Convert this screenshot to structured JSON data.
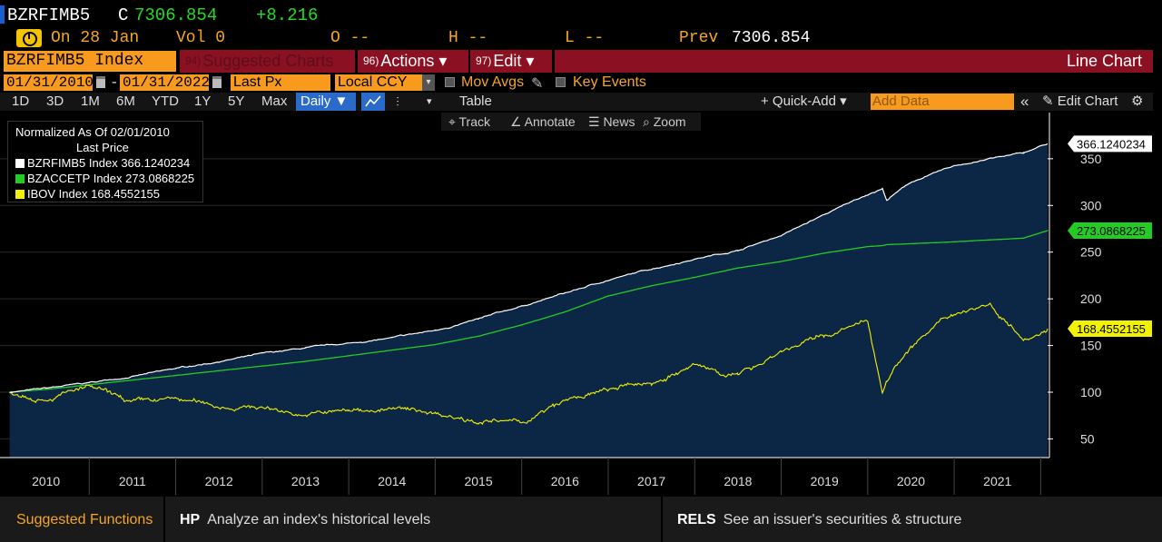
{
  "quote": {
    "ticker": "BZRFIMB5",
    "close_flag": "C",
    "last": "7306.854",
    "change": "+8.216",
    "date_label": "On 28 Jan",
    "vol_label": "Vol 0",
    "open_label": "O --",
    "high_label": "H --",
    "low_label": "L --",
    "prev_label": "Prev",
    "prev_value": "7306.854"
  },
  "function_bar": {
    "security": "BZRFIMB5 Index",
    "suggested_num": "94)",
    "suggested_label": "Suggested Charts",
    "actions_num": "96)",
    "actions_label": "Actions ▾",
    "edit_num": "97)",
    "edit_label": "Edit ▾",
    "chart_type": "Line Chart"
  },
  "range_bar": {
    "start_date": "01/31/2010",
    "dash": "-",
    "end_date": "01/31/2022",
    "field": "Last Px",
    "currency": "Local CCY",
    "mov_avgs": "Mov Avgs",
    "key_events": "Key Events"
  },
  "toolbar": {
    "periods": [
      "1D",
      "3D",
      "1M",
      "6M",
      "YTD",
      "1Y",
      "5Y",
      "Max"
    ],
    "frequency": "Daily ▼",
    "table": "Table",
    "quick_add": "+ Quick-Add ▾",
    "add_data_placeholder": "Add Data",
    "collapse": "«",
    "edit_chart": "✎ Edit Chart"
  },
  "tools": {
    "track": "⌖ Track",
    "annotate": "∠ Annotate",
    "news": "☰ News",
    "zoom": "⌕ Zoom"
  },
  "legend": {
    "title": "Normalized As Of 02/01/2010",
    "subtitle": "Last Price",
    "entries": [
      {
        "name": "BZRFIMB5 Index",
        "value": "366.1240234",
        "color": "#ffffff"
      },
      {
        "name": "BZACCETP Index",
        "value": "273.0868225",
        "color": "#22cc22"
      },
      {
        "name": "IBOV Index",
        "value": "168.4552155",
        "color": "#f2f200"
      }
    ]
  },
  "colors": {
    "area_fill": "#0c2646",
    "bzrfimb5": "#ffffff",
    "bzaccetp": "#22cc22",
    "ibov": "#f2f200",
    "accent_orange": "#f79a1e",
    "function_red": "#8a1022"
  },
  "chart_data": {
    "type": "line",
    "title": "",
    "xlabel": "",
    "ylabel": "",
    "x": [
      2010.08,
      2010.5,
      2011,
      2011.5,
      2012,
      2012.5,
      2013,
      2013.5,
      2014,
      2014.5,
      2015,
      2015.5,
      2016,
      2016.5,
      2017,
      2017.5,
      2018,
      2018.5,
      2019,
      2019.5,
      2020,
      2020.17,
      2020.22,
      2020.5,
      2021,
      2021.4,
      2021.8,
      2022.08
    ],
    "x_tick_labels": [
      "2010",
      "2011",
      "2012",
      "2013",
      "2014",
      "2015",
      "2016",
      "2017",
      "2018",
      "2019",
      "2020",
      "2021"
    ],
    "ylim": [
      30,
      380
    ],
    "y_ticks": [
      50,
      100,
      150,
      200,
      250,
      300,
      350
    ],
    "grid": true,
    "y_axis_side": "right",
    "series": [
      {
        "name": "BZRFIMB5 Index",
        "last_value": "366.1240234",
        "style": "line with filled area",
        "values": [
          100,
          104,
          110,
          117,
          125,
          133,
          141,
          147,
          152,
          158,
          166,
          178,
          192,
          206,
          220,
          232,
          243,
          252,
          268,
          290,
          312,
          318,
          306,
          325,
          342,
          350,
          356,
          366
        ]
      },
      {
        "name": "BZACCETP Index",
        "last_value": "273.0868225",
        "values": [
          100,
          103,
          108,
          113,
          118,
          123,
          128,
          133,
          139,
          145,
          151,
          160,
          172,
          186,
          203,
          214,
          223,
          233,
          240,
          249,
          256,
          257,
          258,
          259,
          261,
          263,
          265,
          273
        ]
      },
      {
        "name": "IBOV Index",
        "last_value": "168.4552155",
        "values": [
          100,
          95,
          105,
          88,
          92,
          85,
          84,
          76,
          80,
          82,
          78,
          70,
          67,
          90,
          102,
          110,
          128,
          118,
          145,
          160,
          175,
          100,
          115,
          150,
          185,
          195,
          160,
          168
        ]
      }
    ]
  },
  "footer": {
    "suggested": "Suggested Functions",
    "f1_code": "HP",
    "f1_desc": "Analyze an index's historical levels",
    "f2_code": "RELS",
    "f2_desc": "See an issuer's securities & structure"
  }
}
